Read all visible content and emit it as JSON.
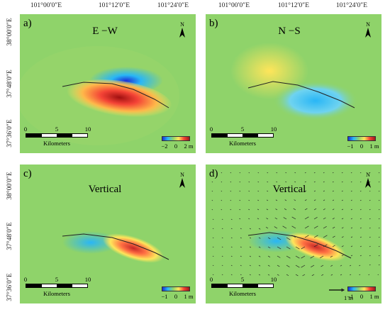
{
  "map": {
    "lon_labels": [
      "101°00′0″E",
      "101°12′0″E",
      "101°24′0″E"
    ],
    "lat_labels": [
      "38°00′0″E",
      "37°48′0″E",
      "37°36′0″E"
    ],
    "scale_ticks": [
      "0",
      "5",
      "10"
    ],
    "scale_unit": "Kilometers",
    "north_label": "N"
  },
  "panels": [
    {
      "letter": "a)",
      "title": "E −W",
      "component": "east-west",
      "colorbar_labels": [
        "−2",
        "0",
        "2 m"
      ],
      "has_vectors": false
    },
    {
      "letter": "b)",
      "title": "N −S",
      "component": "north-south",
      "colorbar_labels": [
        "−1",
        "0",
        "1 m"
      ],
      "has_vectors": false
    },
    {
      "letter": "c)",
      "title": "Vertical",
      "component": "vertical",
      "colorbar_labels": [
        "−1",
        "0",
        "1 m"
      ],
      "has_vectors": false
    },
    {
      "letter": "d)",
      "title": "Vertical",
      "component": "vertical-with-horizontal-vectors",
      "colorbar_labels": [
        "−1",
        "0",
        "1 m"
      ],
      "has_vectors": true,
      "vector_scale_label": "1 m"
    }
  ],
  "colors": {
    "background_field": "#8fd36a",
    "colormap": [
      "#1a2fd6",
      "#29b6f6",
      "#8fd36a",
      "#ffe55a",
      "#f44336",
      "#9b1c1c"
    ],
    "fault_trace": "#222222"
  }
}
